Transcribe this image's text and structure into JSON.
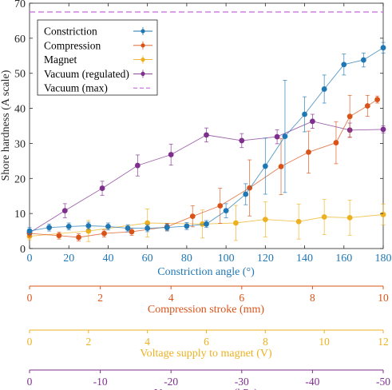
{
  "chart_data": {
    "type": "line",
    "xlabel": "Constriction angle (°)",
    "ylabel": "Shore hardness (A scale)",
    "xlim": [
      0,
      180
    ],
    "ylim": [
      0,
      70
    ],
    "xticks": [
      0,
      20,
      40,
      60,
      80,
      100,
      120,
      140,
      160,
      180
    ],
    "yticks": [
      0,
      10,
      20,
      30,
      40,
      50,
      60,
      70
    ],
    "grid": false,
    "legend_position": "top-left",
    "series": [
      {
        "name": "Constriction",
        "color": "#1f77b4",
        "x": [
          0,
          10,
          20,
          30,
          40,
          50,
          60,
          70,
          80,
          90,
          100,
          110,
          120,
          130,
          140,
          150,
          160,
          170,
          180
        ],
        "y": [
          5,
          6,
          6.3,
          6.5,
          6.3,
          5.8,
          5.8,
          6,
          6.4,
          7,
          10.8,
          15.5,
          23.5,
          32,
          38.3,
          45.5,
          52.5,
          53.8,
          57.3
        ],
        "err": [
          1,
          1,
          1,
          1,
          1,
          1,
          1,
          1,
          1,
          1,
          2,
          3,
          8,
          16,
          5,
          4,
          3,
          2,
          1.5
        ]
      },
      {
        "name": "Compression",
        "color": "#d95319",
        "x": [
          0,
          15,
          25,
          38,
          52,
          70,
          83,
          97,
          112,
          128,
          142,
          156,
          163,
          172,
          177
        ],
        "y": [
          4.3,
          3.7,
          3.2,
          4.3,
          4.8,
          6.2,
          9.2,
          12.2,
          17.3,
          23.4,
          27.5,
          30.2,
          37.7,
          40.7,
          42.5
        ],
        "err": [
          1,
          1,
          1,
          1,
          1,
          1,
          3,
          5,
          8,
          8,
          6,
          6,
          6,
          3,
          1
        ]
      },
      {
        "name": "Magnet",
        "color": "#edb120",
        "x": [
          0,
          30,
          60,
          88,
          105,
          120,
          137,
          150,
          163,
          180
        ],
        "y": [
          3.5,
          5,
          7.3,
          7,
          7.3,
          8.3,
          7.7,
          9,
          8.8,
          9.7
        ],
        "err": [
          1,
          3,
          4,
          4,
          5,
          5,
          5,
          5,
          5,
          3
        ]
      },
      {
        "name": "Vacuum (regulated)",
        "color": "#7e2f8e",
        "x": [
          0,
          18,
          37,
          55,
          72,
          90,
          108,
          126,
          144,
          163,
          180
        ],
        "y": [
          4.5,
          10.8,
          17.2,
          23.7,
          26.8,
          32.4,
          30.8,
          31.9,
          36.3,
          33.8,
          34
        ],
        "err": [
          1,
          2,
          2,
          3,
          3,
          2,
          2,
          2,
          2,
          2,
          1
        ]
      },
      {
        "name": "Vacuum (max)",
        "color": "#c767dc",
        "dashed": true,
        "y_constant": 67.5
      }
    ],
    "secondary_axes": [
      {
        "label": "Compression stroke (mm)",
        "color": "#d95319",
        "ticks": [
          0,
          2,
          4,
          6,
          8,
          10
        ],
        "range": [
          0,
          10
        ]
      },
      {
        "label": "Voltage supply to magnet (V)",
        "color": "#edb120",
        "ticks": [
          0,
          2,
          4,
          6,
          8,
          10,
          12
        ],
        "range": [
          0,
          12
        ]
      },
      {
        "label": "Vacuum pressure (kPa)",
        "color": "#7e2f8e",
        "ticks": [
          0,
          -10,
          -20,
          -30,
          -40,
          -50
        ],
        "range": [
          0,
          -50
        ]
      }
    ]
  }
}
